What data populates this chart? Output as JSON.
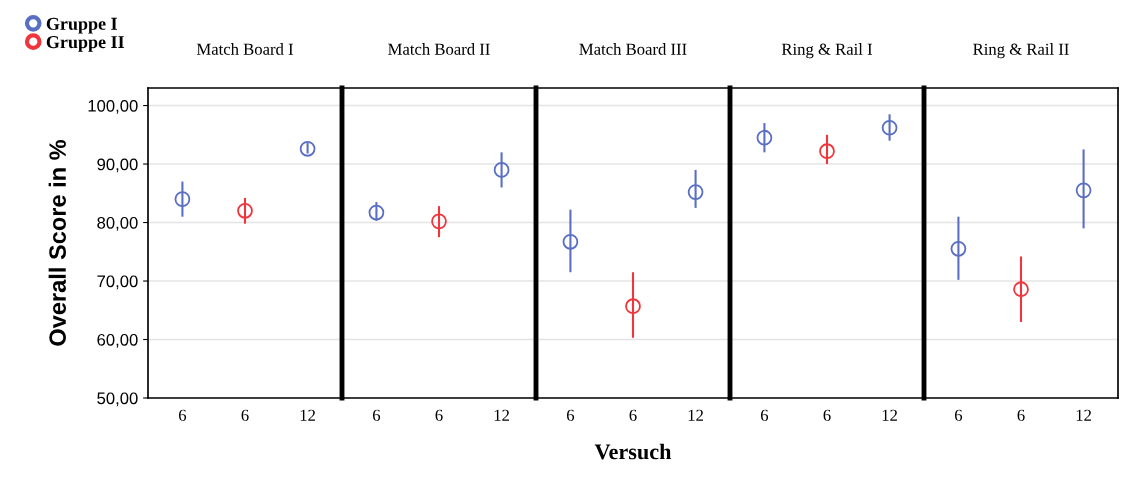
{
  "chart_data": [
    {
      "type": "scatter",
      "title": "Match Board I",
      "ylabel": "Overall Score in %",
      "categories": [
        "6",
        "6",
        "12"
      ],
      "ylim": [
        50,
        103
      ],
      "yticks": [
        {
          "value": 50,
          "label": "50,00"
        },
        {
          "value": 60,
          "label": "60,00"
        },
        {
          "value": 70,
          "label": "70,00"
        },
        {
          "value": 80,
          "label": "80,00"
        },
        {
          "value": 90,
          "label": "90,00"
        },
        {
          "value": 100,
          "label": "100,00"
        }
      ],
      "grid": "y",
      "marker": "circle",
      "legend": "top left",
      "series": [
        {
          "name": "Gruppe I",
          "color": "#5a6fc4",
          "values": [
            84,
            null,
            92.6
          ],
          "errors": [
            [
              81,
              87
            ],
            null,
            [
              91.8,
              93.6
            ]
          ]
        },
        {
          "name": "Gruppe II",
          "color": "#f0363c",
          "values": [
            null,
            82,
            null
          ],
          "errors": [
            null,
            [
              79.8,
              84.2
            ],
            null
          ]
        }
      ]
    },
    {
      "type": "scatter",
      "title": "Match Board II",
      "categories": [
        "6",
        "6",
        "12"
      ],
      "ylim": [
        50,
        103
      ],
      "yticks": [
        50,
        60,
        70,
        80,
        90,
        100
      ],
      "tick_labels": "x",
      "grid": "y",
      "marker": "circle",
      "series": [
        {
          "color": "#5a6fc4",
          "values": [
            81.7,
            null,
            89
          ],
          "errors": [
            [
              80.3,
              83.5
            ],
            null,
            [
              86,
              92
            ]
          ]
        },
        {
          "color": "#f0363c",
          "values": [
            null,
            80.2,
            null
          ],
          "errors": [
            null,
            [
              77.5,
              82.8
            ],
            null
          ]
        }
      ]
    },
    {
      "type": "scatter",
      "title": "Match Board III",
      "xlabel": "Versuch",
      "categories": [
        "6",
        "6",
        "12"
      ],
      "ylim": [
        50,
        103
      ],
      "yticks": [
        50,
        60,
        70,
        80,
        90,
        100
      ],
      "tick_labels": "x",
      "grid": "y",
      "marker": "circle",
      "series": [
        {
          "color": "#5a6fc4",
          "values": [
            76.7,
            null,
            85.2
          ],
          "errors": [
            [
              71.5,
              82.2
            ],
            null,
            [
              82.5,
              89
            ]
          ]
        },
        {
          "color": "#f0363c",
          "values": [
            null,
            65.7,
            null
          ],
          "errors": [
            null,
            [
              60.3,
              71.5
            ],
            null
          ]
        }
      ]
    },
    {
      "type": "scatter",
      "title": "Ring & Rail I",
      "categories": [
        "6",
        "6",
        "12"
      ],
      "ylim": [
        50,
        103
      ],
      "yticks": [
        50,
        60,
        70,
        80,
        90,
        100
      ],
      "tick_labels": "x",
      "grid": "y",
      "marker": "circle",
      "series": [
        {
          "color": "#5a6fc4",
          "values": [
            94.5,
            null,
            96.2
          ],
          "errors": [
            [
              92,
              97
            ],
            null,
            [
              94,
              98.5
            ]
          ]
        },
        {
          "color": "#f0363c",
          "values": [
            null,
            92.2,
            null
          ],
          "errors": [
            null,
            [
              90,
              95
            ],
            null
          ]
        }
      ]
    },
    {
      "type": "scatter",
      "title": "Ring & Rail II",
      "categories": [
        "6",
        "6",
        "12"
      ],
      "ylim": [
        50,
        103
      ],
      "yticks": [
        50,
        60,
        70,
        80,
        90,
        100
      ],
      "tick_labels": "x",
      "grid": "y",
      "marker": "circle",
      "series": [
        {
          "color": "#5a6fc4",
          "values": [
            75.5,
            null,
            85.5
          ],
          "errors": [
            [
              70.2,
              81
            ],
            null,
            [
              79,
              92.5
            ]
          ]
        },
        {
          "color": "#f0363c",
          "values": [
            null,
            68.6,
            null
          ],
          "errors": [
            null,
            [
              63,
              74.2
            ],
            null
          ]
        }
      ]
    }
  ]
}
